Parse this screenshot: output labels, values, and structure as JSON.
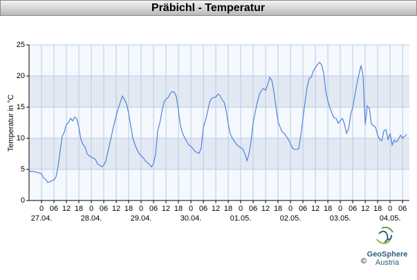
{
  "chart_data": {
    "type": "line",
    "title": "Präbichl - Temperatur",
    "y_label": "Temperatur in °C",
    "x": [
      -6,
      -5,
      -4,
      -2,
      0,
      1,
      2,
      3,
      4,
      5,
      6,
      7,
      8,
      9,
      10,
      11,
      12,
      13,
      14,
      15,
      16,
      17,
      18,
      19,
      20,
      21,
      22,
      23,
      24,
      26,
      27,
      28,
      29,
      30,
      31,
      32,
      33,
      34,
      35,
      36,
      37,
      38,
      39,
      40,
      41,
      42,
      43,
      44,
      45,
      46,
      47,
      48,
      49,
      50,
      51,
      52,
      53,
      54,
      55,
      56,
      57,
      58,
      59,
      60,
      61,
      62,
      63,
      64,
      65,
      66,
      67,
      68,
      69,
      70,
      71,
      72,
      73,
      74,
      75,
      76,
      77,
      78,
      79,
      80,
      81,
      82,
      83,
      84,
      85,
      86,
      87,
      88,
      89,
      90,
      91,
      92,
      93,
      94,
      95,
      96,
      97,
      98,
      99,
      100,
      101,
      102,
      103,
      104,
      105,
      106,
      107,
      108,
      109,
      110,
      111,
      112,
      113,
      114,
      115,
      116,
      117,
      118,
      119,
      120,
      121,
      122,
      123,
      124,
      125,
      126,
      127,
      128,
      129,
      130,
      131,
      132,
      133,
      134,
      135,
      136,
      137,
      138,
      139,
      140,
      141,
      142,
      143,
      144,
      145,
      146,
      147,
      148,
      149,
      150,
      151,
      152,
      153,
      154,
      155,
      156,
      157,
      158,
      159,
      160,
      161,
      162,
      163,
      164,
      165,
      166,
      167,
      168,
      169,
      170,
      171,
      172,
      173,
      174,
      175,
      176
    ],
    "values": [
      4.9,
      4.6,
      4.7,
      4.5,
      4.3,
      3.6,
      3.4,
      2.9,
      3.0,
      3.2,
      3.3,
      3.8,
      5.5,
      8.0,
      10.3,
      11.0,
      12.2,
      12.5,
      13.2,
      12.8,
      13.4,
      13.1,
      11.8,
      9.8,
      9.0,
      8.6,
      7.5,
      7.2,
      7.0,
      6.6,
      5.9,
      5.7,
      5.4,
      5.7,
      6.3,
      7.8,
      9.3,
      10.8,
      12.3,
      13.6,
      14.8,
      15.8,
      16.8,
      16.2,
      15.5,
      14.0,
      12.0,
      10.0,
      9.0,
      8.2,
      7.6,
      7.2,
      6.9,
      6.4,
      6.1,
      5.8,
      5.4,
      6.0,
      7.4,
      11.2,
      12.4,
      14.2,
      15.8,
      16.3,
      16.5,
      17.2,
      17.5,
      17.4,
      16.7,
      14.5,
      12.0,
      10.8,
      10.1,
      9.5,
      8.9,
      8.7,
      8.3,
      7.9,
      7.7,
      7.6,
      8.5,
      11.8,
      12.8,
      14.2,
      15.8,
      16.4,
      16.6,
      16.6,
      17.1,
      16.9,
      16.2,
      15.8,
      14.5,
      12.3,
      10.7,
      10.0,
      9.5,
      9.0,
      8.7,
      8.5,
      8.3,
      7.5,
      6.4,
      7.5,
      9.5,
      12.5,
      14.2,
      15.8,
      17.0,
      17.7,
      18.0,
      17.7,
      18.6,
      19.8,
      19.3,
      17.5,
      15.0,
      12.7,
      11.8,
      11.0,
      10.8,
      10.3,
      9.8,
      9.1,
      8.4,
      8.2,
      8.2,
      8.3,
      10.5,
      13.2,
      15.8,
      18.2,
      19.6,
      19.8,
      20.8,
      21.4,
      21.8,
      22.2,
      21.8,
      20.5,
      17.5,
      16.0,
      14.9,
      14.0,
      13.3,
      13.2,
      12.4,
      12.8,
      13.2,
      12.3,
      10.8,
      11.5,
      13.8,
      15.0,
      16.8,
      18.7,
      20.3,
      21.7,
      20.0,
      12.2,
      15.2,
      14.8,
      12.3,
      12.0,
      11.8,
      10.5,
      9.8,
      9.6,
      11.2,
      11.4,
      9.8,
      10.8,
      8.9,
      9.7,
      9.4,
      9.8,
      10.5,
      10.0,
      10.3,
      10.6
    ],
    "color": "#4f81d9",
    "xlim": [
      -6,
      177.3
    ],
    "ylim": [
      0,
      25
    ],
    "yticks": [
      0,
      5,
      10,
      15,
      20,
      25
    ],
    "grid": true,
    "xticks": [
      {
        "value": 0,
        "label": "0"
      },
      {
        "value": 6,
        "label": "06"
      },
      {
        "value": 12,
        "label": "12"
      },
      {
        "value": 18,
        "label": "18"
      },
      {
        "value": 24,
        "label": "0"
      },
      {
        "value": 30,
        "label": "06"
      },
      {
        "value": 36,
        "label": "12"
      },
      {
        "value": 42,
        "label": "18"
      },
      {
        "value": 48,
        "label": "0"
      },
      {
        "value": 54,
        "label": "06"
      },
      {
        "value": 60,
        "label": "12"
      },
      {
        "value": 66,
        "label": "18"
      },
      {
        "value": 72,
        "label": "0"
      },
      {
        "value": 78,
        "label": "06"
      },
      {
        "value": 84,
        "label": "12"
      },
      {
        "value": 90,
        "label": "18"
      },
      {
        "value": 96,
        "label": "0"
      },
      {
        "value": 102,
        "label": "06"
      },
      {
        "value": 108,
        "label": "12"
      },
      {
        "value": 114,
        "label": "18"
      },
      {
        "value": 120,
        "label": "0"
      },
      {
        "value": 126,
        "label": "06"
      },
      {
        "value": 132,
        "label": "12"
      },
      {
        "value": 138,
        "label": "18"
      },
      {
        "value": 144,
        "label": "0"
      },
      {
        "value": 150,
        "label": "06"
      },
      {
        "value": 156,
        "label": "12"
      },
      {
        "value": 162,
        "label": "18"
      },
      {
        "value": 168,
        "label": "0"
      },
      {
        "value": 174,
        "label": "06"
      }
    ],
    "date_labels": [
      {
        "value": 0,
        "label": "27.04."
      },
      {
        "value": 24,
        "label": "28.04."
      },
      {
        "value": 48,
        "label": "29.04."
      },
      {
        "value": 72,
        "label": "30.04."
      },
      {
        "value": 96,
        "label": "01.05."
      },
      {
        "value": 120,
        "label": "02.05."
      },
      {
        "value": 144,
        "label": "03.05."
      },
      {
        "value": 168,
        "label": "04.05."
      }
    ]
  },
  "footer": {
    "copyright": "©",
    "brand": "GeoSphere",
    "country": "Austria"
  }
}
